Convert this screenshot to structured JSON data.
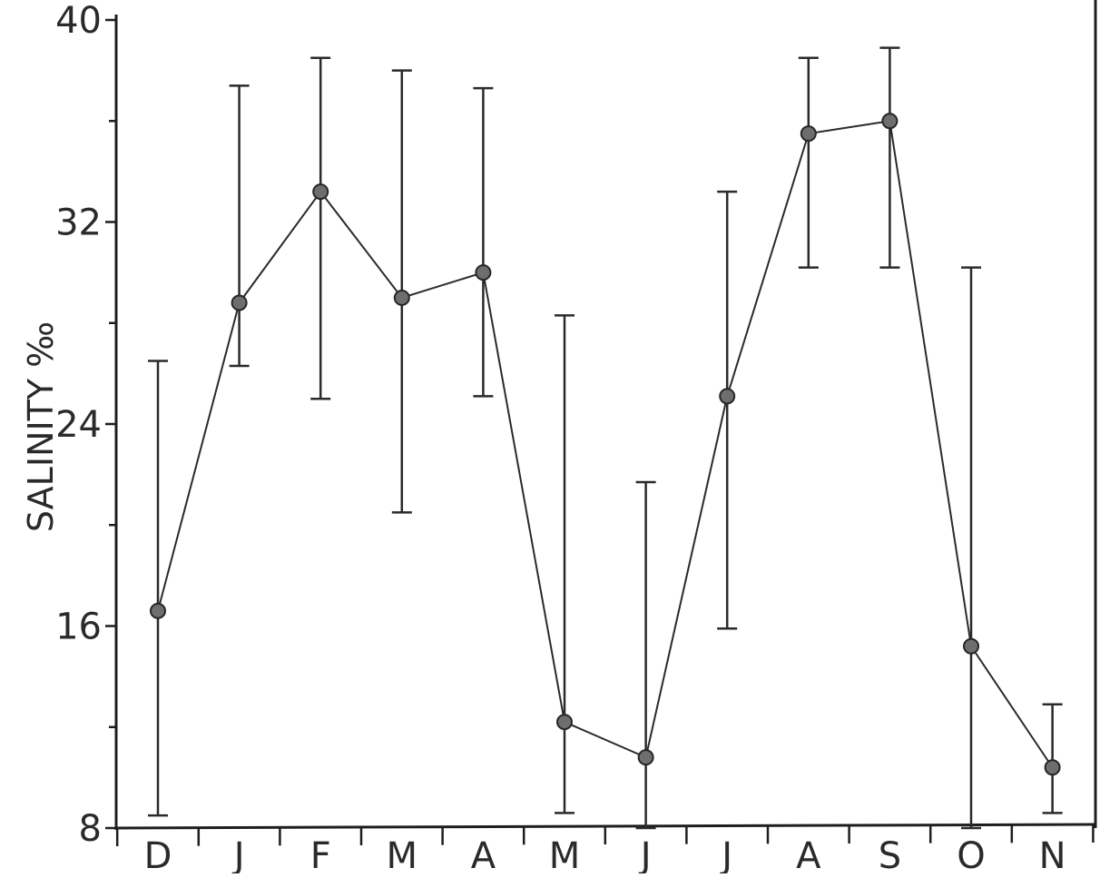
{
  "chart_data": {
    "type": "line",
    "title": "",
    "xlabel": "",
    "ylabel": "SALINITY ‰",
    "categories": [
      "D",
      "J",
      "F",
      "M",
      "A",
      "M",
      "J",
      "J",
      "A",
      "S",
      "O",
      "N"
    ],
    "series": [
      {
        "values": [
          16.6,
          28.8,
          33.2,
          29.0,
          30.0,
          12.2,
          10.8,
          25.1,
          35.5,
          36.0,
          15.2,
          10.4
        ],
        "error_low": [
          8.5,
          26.3,
          25.0,
          20.5,
          25.1,
          8.6,
          8.0,
          15.9,
          30.2,
          30.2,
          8.0,
          8.6
        ],
        "error_high": [
          26.5,
          37.4,
          38.5,
          38.0,
          37.3,
          28.3,
          21.7,
          33.2,
          38.5,
          38.9,
          30.2,
          12.9
        ]
      }
    ],
    "yticks": [
      8,
      16,
      24,
      32,
      40
    ],
    "ylim": [
      8,
      40
    ],
    "grid": false,
    "colors": {
      "line": "#2a2a2a",
      "marker_fill": "#6e6e6e",
      "axis": "#1e1e1e"
    }
  }
}
